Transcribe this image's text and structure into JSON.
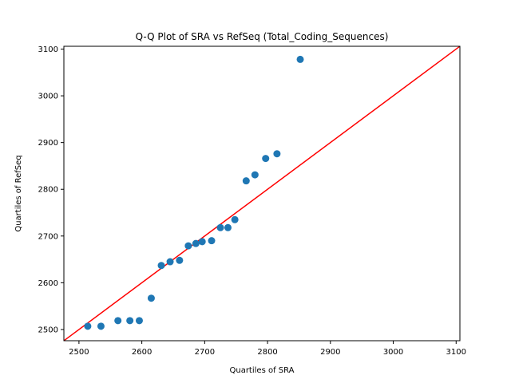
{
  "chart_data": {
    "type": "scatter",
    "title": "Q-Q Plot of SRA vs RefSeq (Total_Coding_Sequences)",
    "xlabel": "Quartiles of SRA",
    "ylabel": "Quartiles of RefSeq",
    "xlim": [
      2476,
      3106
    ],
    "ylim": [
      2476,
      3106
    ],
    "xticks": [
      2500,
      2600,
      2700,
      2800,
      2900,
      3000,
      3100
    ],
    "yticks": [
      2500,
      2600,
      2700,
      2800,
      2900,
      3000,
      3100
    ],
    "grid": false,
    "point_color": "#1f77b4",
    "reference_line": {
      "color": "#ff0000",
      "slope": 1,
      "intercept": 0
    },
    "series": [
      {
        "x": [
          2514,
          2535,
          2562,
          2581,
          2596,
          2615,
          2631,
          2645,
          2660,
          2674,
          2686,
          2696,
          2711,
          2725,
          2737,
          2748,
          2766,
          2780,
          2797,
          2815,
          2852
        ],
        "y": [
          2507,
          2507,
          2519,
          2519,
          2519,
          2567,
          2637,
          2645,
          2648,
          2679,
          2684,
          2688,
          2690,
          2718,
          2718,
          2735,
          2818,
          2831,
          2866,
          2876,
          3078
        ]
      }
    ]
  }
}
